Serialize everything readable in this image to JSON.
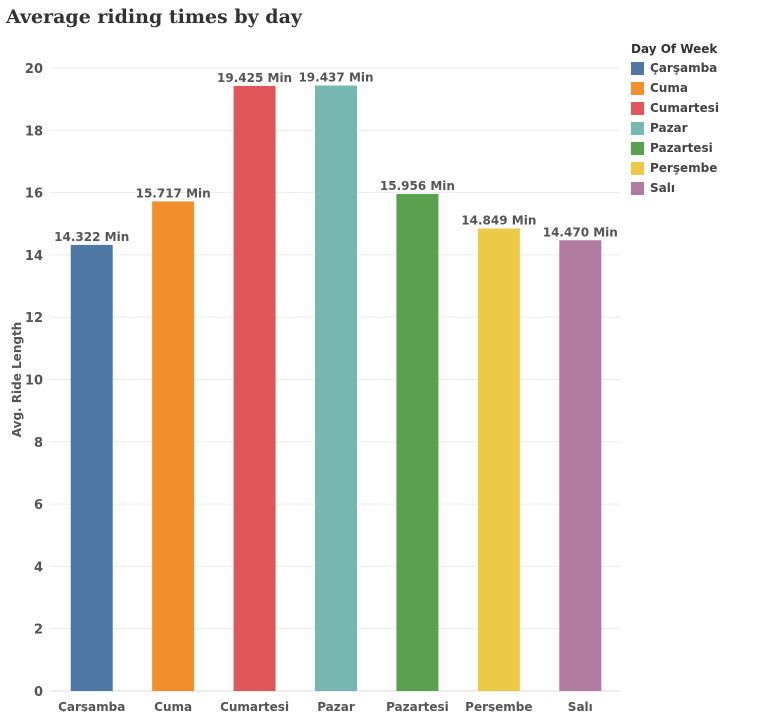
{
  "chart_data": {
    "type": "bar",
    "title": "Average riding times by day",
    "ylabel": "Avg. Ride Length",
    "xlabel": "",
    "ylim": [
      0,
      20
    ],
    "yticks": [
      0,
      2,
      4,
      6,
      8,
      10,
      12,
      14,
      16,
      18,
      20
    ],
    "categories": [
      "Çarşamba",
      "Cuma",
      "Cumartesi",
      "Pazar",
      "Pazartesi",
      "Perşembe",
      "Salı"
    ],
    "values": [
      14.322,
      15.717,
      19.425,
      19.437,
      15.956,
      14.849,
      14.47
    ],
    "data_labels": [
      "14.322 Min",
      "15.717 Min",
      "19.425 Min",
      "19.437 Min",
      "15.956 Min",
      "14.849 Min",
      "14.470 Min"
    ],
    "colors": [
      "#4e79a7",
      "#f28e2b",
      "#e15759",
      "#76b7b2",
      "#59a14f",
      "#edc948",
      "#b07aa1"
    ],
    "legend": {
      "title": "Day Of Week",
      "position": "top-right",
      "items": [
        "Çarşamba",
        "Cuma",
        "Cumartesi",
        "Pazar",
        "Pazartesi",
        "Perşembe",
        "Salı"
      ]
    },
    "grid": true
  }
}
